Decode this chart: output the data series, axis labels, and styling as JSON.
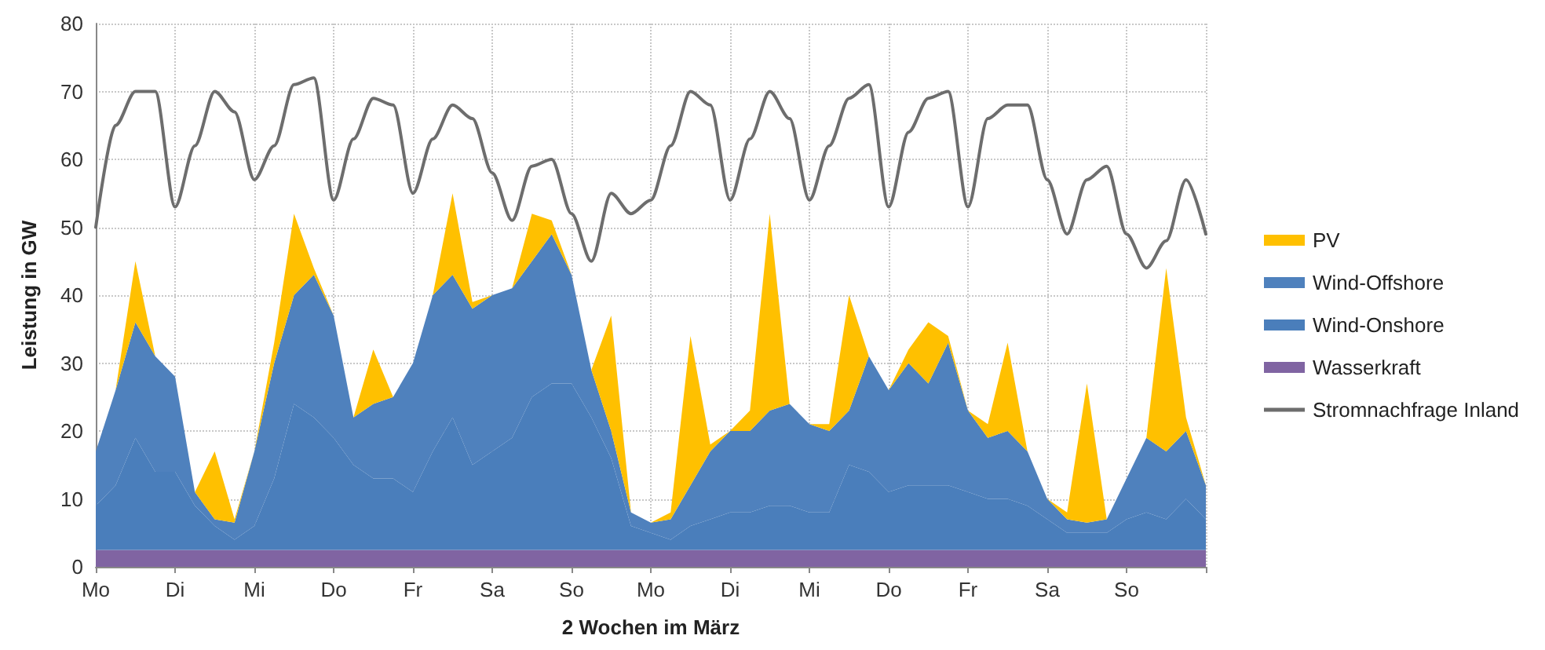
{
  "chart_data": {
    "type": "area",
    "xlabel": "2 Wochen im März",
    "ylabel": "Leistung in GW",
    "stacked": true,
    "grid": true,
    "legend": "right",
    "marker": "none",
    "line_style": "solid",
    "categories": [
      "Mo",
      null,
      null,
      null,
      "Di",
      null,
      null,
      null,
      "Mi",
      null,
      null,
      null,
      "Do",
      null,
      null,
      null,
      "Fr",
      null,
      null,
      null,
      "Sa",
      null,
      null,
      null,
      "So",
      null,
      null,
      null,
      "Mo",
      null,
      null,
      null,
      "Di",
      null,
      null,
      null,
      "Mi",
      null,
      null,
      null,
      "Do",
      null,
      null,
      null,
      "Fr",
      null,
      null,
      null,
      "Sa",
      null,
      null,
      null,
      "So",
      null,
      null,
      null,
      null
    ],
    "ylim": [
      0,
      80
    ],
    "yticks": [
      0,
      10,
      20,
      30,
      40,
      50,
      60,
      70,
      80
    ],
    "series": [
      {
        "name": "Wasserkraft",
        "color": "#8064a2",
        "values": [
          2.5,
          2.5,
          2.5,
          2.5,
          2.5,
          2.5,
          2.5,
          2.5,
          2.5,
          2.5,
          2.5,
          2.5,
          2.5,
          2.5,
          2.5,
          2.5,
          2.5,
          2.5,
          2.5,
          2.5,
          2.5,
          2.5,
          2.5,
          2.5,
          2.5,
          2.5,
          2.5,
          2.5,
          2.5,
          2.5,
          2.5,
          2.5,
          2.5,
          2.5,
          2.5,
          2.5,
          2.5,
          2.5,
          2.5,
          2.5,
          2.5,
          2.5,
          2.5,
          2.5,
          2.5,
          2.5,
          2.5,
          2.5,
          2.5,
          2.5,
          2.5,
          2.5,
          2.5,
          2.5,
          2.5,
          2.5,
          2.5
        ]
      },
      {
        "name": "Wind-Onshore",
        "color": "#4a7ebb",
        "values": [
          6.5,
          9.5,
          16.5,
          11.5,
          11.5,
          6.5,
          3.5,
          1.5,
          3.5,
          10.5,
          21.5,
          19.5,
          16.5,
          12.5,
          10.5,
          10.5,
          8.5,
          14.5,
          19.5,
          12.5,
          14.5,
          16.5,
          22.5,
          24.5,
          24.5,
          19.5,
          13.5,
          3.5,
          2.5,
          1.5,
          3.5,
          4.5,
          5.5,
          5.5,
          6.5,
          6.5,
          5.5,
          5.5,
          12.5,
          11.5,
          8.5,
          9.5,
          9.5,
          9.5,
          8.5,
          7.5,
          7.5,
          6.5,
          4.5,
          2.5,
          2.5,
          2.5,
          4.5,
          5.5,
          4.5,
          7.5,
          4.5
        ]
      },
      {
        "name": "Wind-Offshore",
        "color": "#4f81bd",
        "values": [
          8,
          14,
          17,
          17,
          14,
          2,
          1,
          2.5,
          11,
          17,
          16,
          21,
          18,
          7,
          11,
          12,
          19,
          23,
          21,
          23,
          23,
          22,
          20,
          22,
          16,
          7,
          4,
          2,
          1.5,
          3,
          6,
          10,
          12,
          12,
          14,
          15,
          13,
          12,
          8,
          17,
          15,
          18,
          15,
          21,
          12,
          9,
          10,
          8,
          3,
          2,
          1.5,
          2,
          6,
          11,
          10,
          10,
          5
        ]
      },
      {
        "name": "PV",
        "color": "#ffc000",
        "values": [
          0,
          0,
          9,
          0,
          0,
          0,
          10,
          0.5,
          0,
          3,
          12,
          1,
          0,
          0,
          8,
          0,
          0,
          0,
          12,
          1,
          0,
          0,
          7,
          2,
          0,
          0,
          17,
          0,
          0,
          1,
          22,
          1,
          0,
          3,
          29,
          0,
          0,
          1,
          17,
          0,
          0,
          2,
          9,
          1,
          0,
          2,
          13,
          0,
          0,
          1,
          20.5,
          0,
          0,
          0,
          27,
          2,
          0
        ]
      },
      {
        "name": "Stromnachfrage Inland",
        "type": "line",
        "color": "#6d6d6d",
        "values": [
          50,
          65,
          70,
          70,
          53,
          62,
          70,
          67,
          57,
          62,
          71,
          72,
          54,
          63,
          69,
          68,
          55,
          63,
          68,
          66,
          58,
          51,
          59,
          60,
          52,
          45,
          55,
          52,
          54,
          62,
          70,
          68,
          54,
          63,
          70,
          66,
          54,
          62,
          69,
          71,
          53,
          64,
          69,
          70,
          53,
          66,
          68,
          68,
          57,
          49,
          57,
          59,
          49,
          44,
          48,
          57,
          49
        ]
      }
    ]
  }
}
